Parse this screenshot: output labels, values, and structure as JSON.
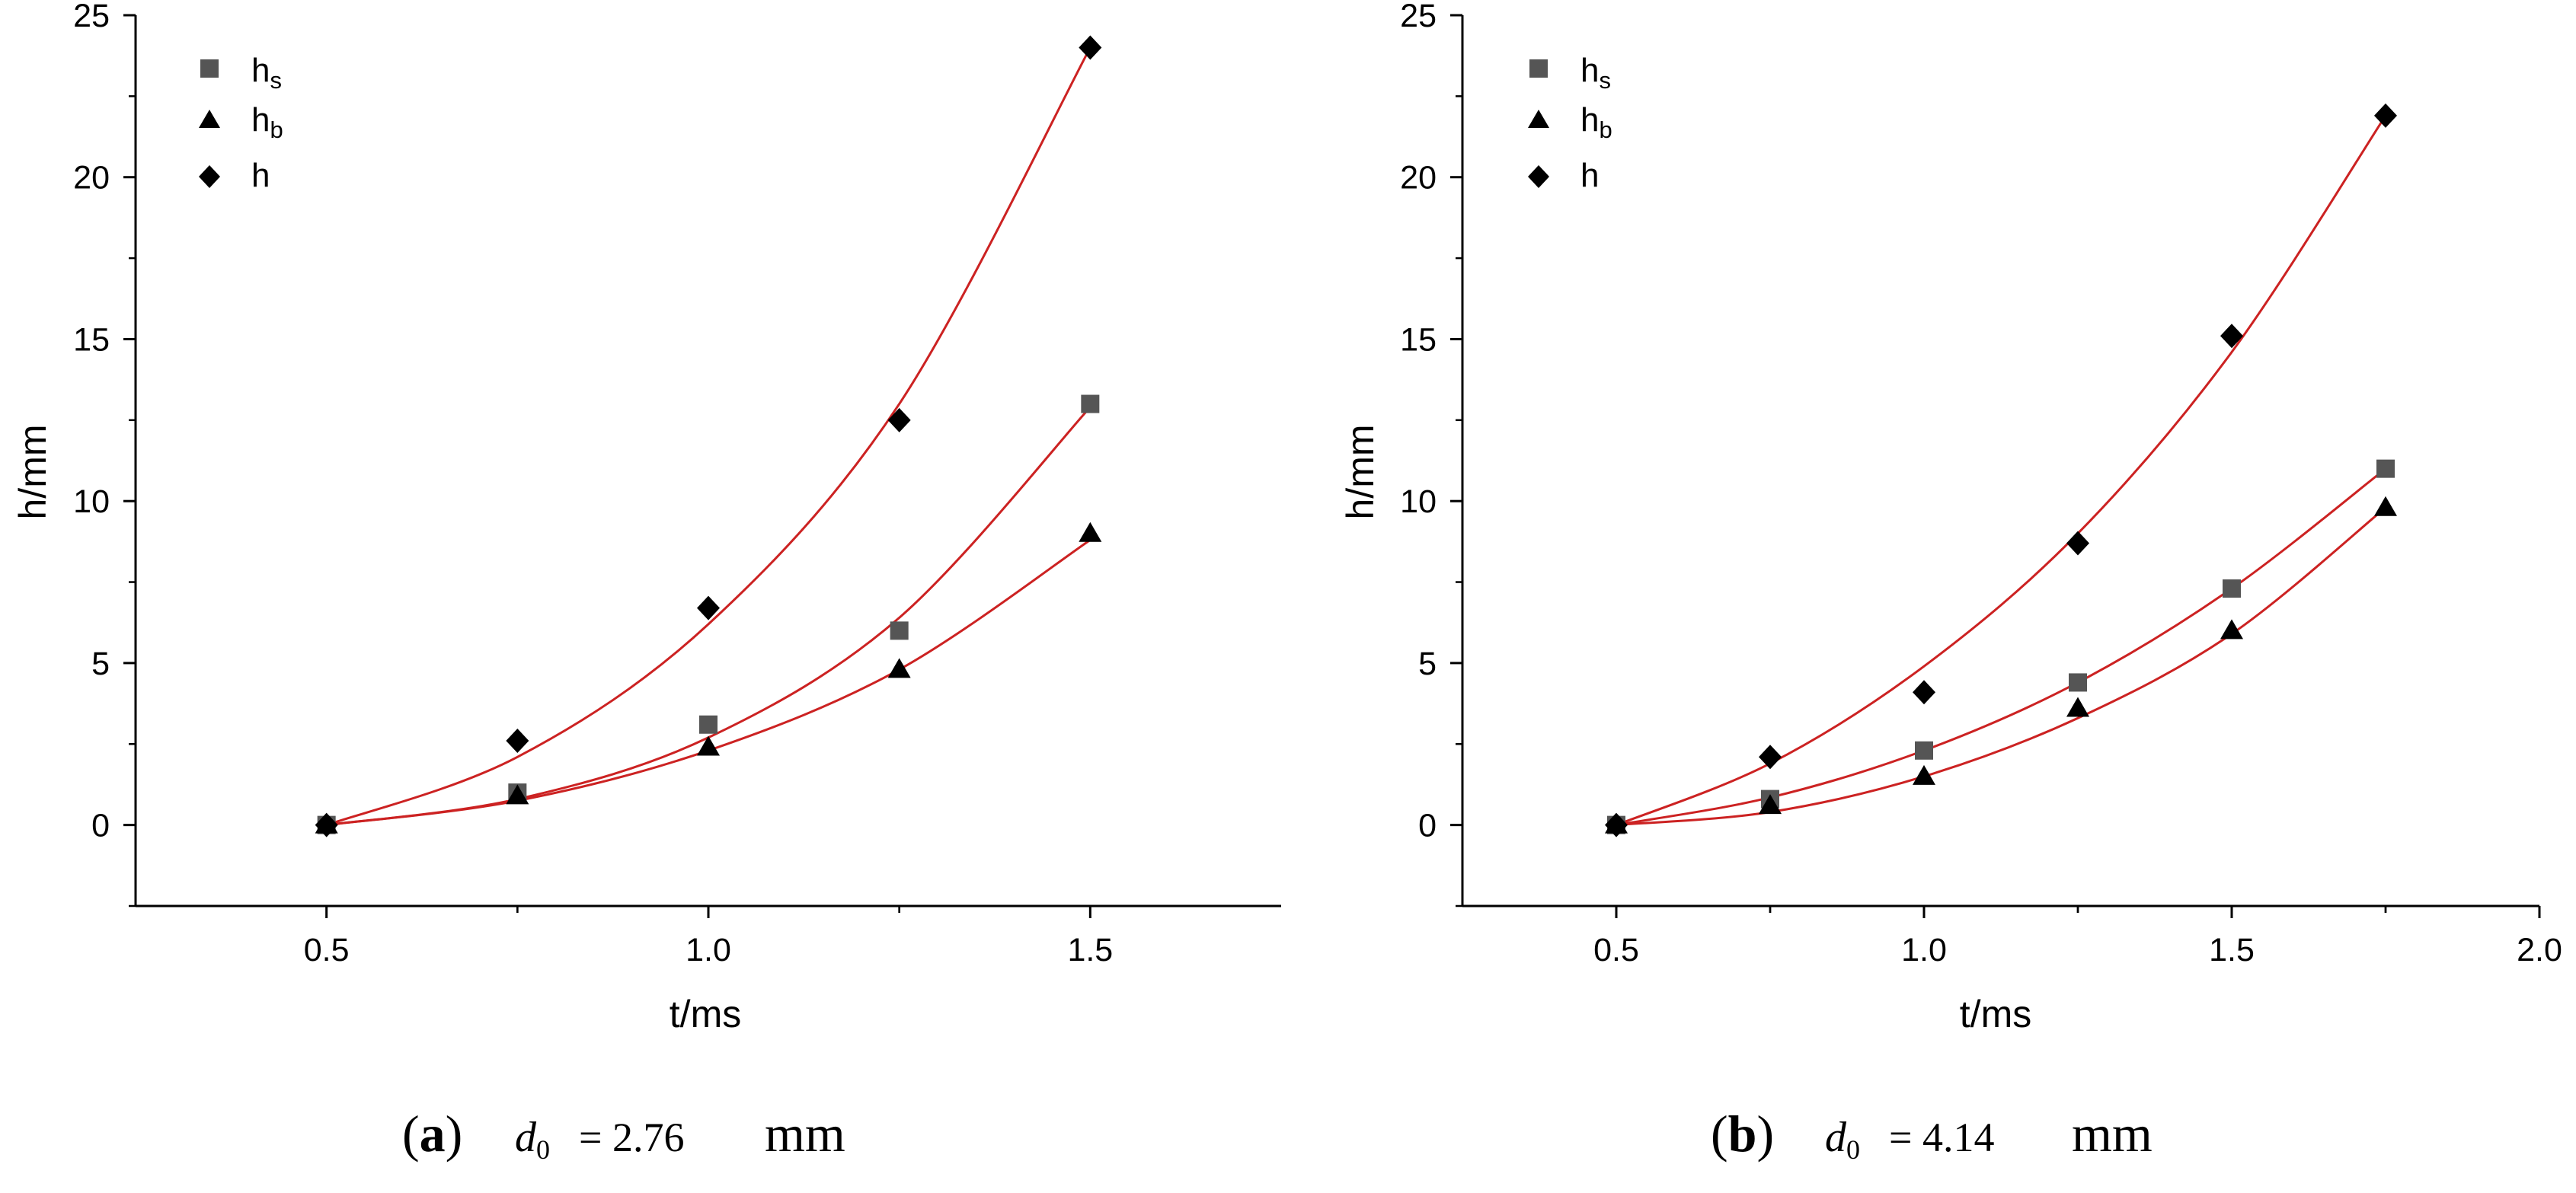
{
  "chart_data": [
    {
      "type": "scatter",
      "panel": "a",
      "caption": {
        "letter": "a",
        "variable": "d",
        "subscript": "0",
        "value": "2.76",
        "unit": "mm"
      },
      "xlabel": "t/ms",
      "ylabel": "h/mm",
      "xlim": [
        0.25,
        1.75
      ],
      "ylim": [
        -2.5,
        25
      ],
      "xticks": [
        0.5,
        1.0,
        1.5
      ],
      "xtick_labels": [
        "0.5",
        "1.0",
        "1.5"
      ],
      "yticks": [
        0,
        5,
        10,
        15,
        20,
        25
      ],
      "ytick_labels": [
        "0",
        "5",
        "10",
        "15",
        "20",
        "25"
      ],
      "legend_position": "top-left",
      "series": [
        {
          "name": "hs",
          "label": "h",
          "sub": "s",
          "marker": "square",
          "color": "#555555",
          "x": [
            0.5,
            0.75,
            1.0,
            1.25,
            1.5
          ],
          "y": [
            0.0,
            1.0,
            3.1,
            6.0,
            13.0
          ],
          "fit": [
            0.0,
            0.8,
            2.7,
            6.4,
            12.9
          ]
        },
        {
          "name": "hb",
          "label": "h",
          "sub": "b",
          "marker": "triangle",
          "color": "#000000",
          "x": [
            0.5,
            0.75,
            1.0,
            1.25,
            1.5
          ],
          "y": [
            0.0,
            0.9,
            2.4,
            4.8,
            9.0
          ],
          "fit": [
            0.0,
            0.75,
            2.3,
            4.8,
            8.8
          ]
        },
        {
          "name": "h",
          "label": "h",
          "sub": "",
          "marker": "diamond",
          "color": "#000000",
          "x": [
            0.5,
            0.75,
            1.0,
            1.25,
            1.5
          ],
          "y": [
            0.0,
            2.6,
            6.7,
            12.5,
            24.0
          ],
          "fit": [
            0.0,
            2.1,
            6.2,
            13.0,
            24.0
          ]
        }
      ]
    },
    {
      "type": "scatter",
      "panel": "b",
      "caption": {
        "letter": "b",
        "variable": "d",
        "subscript": "0",
        "value": "4.14",
        "unit": "mm"
      },
      "xlabel": "t/ms",
      "ylabel": "h/mm",
      "xlim": [
        0.25,
        2.0
      ],
      "ylim": [
        -2.5,
        25
      ],
      "xticks": [
        0.5,
        1.0,
        1.5,
        2.0
      ],
      "xtick_labels": [
        "0.5",
        "1.0",
        "1.5",
        "2.0"
      ],
      "yticks": [
        0,
        5,
        10,
        15,
        20,
        25
      ],
      "ytick_labels": [
        "0",
        "5",
        "10",
        "15",
        "20",
        "25"
      ],
      "legend_position": "top-left",
      "series": [
        {
          "name": "hs",
          "label": "h",
          "sub": "s",
          "marker": "square",
          "color": "#555555",
          "x": [
            0.5,
            0.75,
            1.0,
            1.25,
            1.5,
            1.75
          ],
          "y": [
            0.0,
            0.8,
            2.3,
            4.4,
            7.3,
            11.0
          ],
          "fit": [
            0.0,
            0.85,
            2.3,
            4.4,
            7.3,
            11.0
          ]
        },
        {
          "name": "hb",
          "label": "h",
          "sub": "b",
          "marker": "triangle",
          "color": "#000000",
          "x": [
            0.5,
            0.75,
            1.0,
            1.25,
            1.5,
            1.75
          ],
          "y": [
            0.0,
            0.6,
            1.5,
            3.6,
            6.0,
            9.8
          ],
          "fit": [
            0.0,
            0.4,
            1.5,
            3.3,
            5.9,
            9.8
          ]
        },
        {
          "name": "h",
          "label": "h",
          "sub": "",
          "marker": "diamond",
          "color": "#000000",
          "x": [
            0.5,
            0.75,
            1.0,
            1.25,
            1.5,
            1.75
          ],
          "y": [
            0.0,
            2.1,
            4.1,
            8.7,
            15.1,
            21.9
          ],
          "fit": [
            0.0,
            1.9,
            4.9,
            9.0,
            14.6,
            21.9
          ]
        }
      ]
    }
  ],
  "fit_line_color": "#cc2222"
}
